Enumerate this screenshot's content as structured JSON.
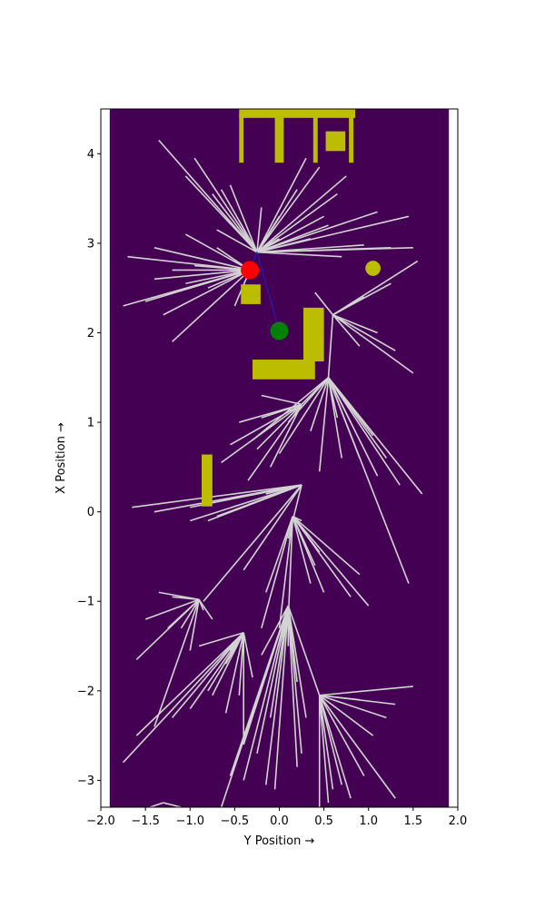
{
  "chart_data": {
    "type": "scatter",
    "title": "",
    "xlabel": "Y Position →",
    "ylabel": "X Position →",
    "xlim": [
      -2.0,
      2.0
    ],
    "ylim": [
      -3.3,
      4.5
    ],
    "x_ticks": [
      -2.0,
      -1.5,
      -1.0,
      -0.5,
      0.0,
      0.5,
      1.0,
      1.5,
      2.0
    ],
    "x_tick_labels": [
      "−2.0",
      "−1.5",
      "−1.0",
      "−0.5",
      "0.0",
      "0.5",
      "1.0",
      "1.5",
      "2.0"
    ],
    "y_ticks": [
      -3,
      -2,
      -1,
      0,
      1,
      2,
      3,
      4
    ],
    "y_tick_labels": [
      "−3",
      "−2",
      "−1",
      "0",
      "1",
      "2",
      "3",
      "4"
    ],
    "grid": false,
    "colors": {
      "background": "#440154",
      "obstacle": "#bdbd00",
      "tree": "#d3d3d3",
      "path": "#1f1fcf",
      "start": "#ff0000",
      "goal": "#008000",
      "outside": "#ffffff"
    },
    "workspace": {
      "x": [
        -1.9,
        1.9
      ],
      "y": [
        -3.3,
        4.5
      ]
    },
    "obstacles": [
      [
        -0.45,
        4.4,
        1.3,
        0.1
      ],
      [
        -0.45,
        3.9,
        0.05,
        0.55
      ],
      [
        -0.05,
        3.9,
        0.1,
        0.55
      ],
      [
        0.38,
        3.9,
        0.05,
        0.55
      ],
      [
        0.78,
        3.9,
        0.05,
        0.55
      ],
      [
        0.52,
        4.03,
        0.22,
        0.22
      ],
      [
        -0.43,
        2.32,
        0.22,
        0.22
      ],
      [
        0.27,
        1.68,
        0.23,
        0.6
      ],
      [
        -0.3,
        1.48,
        0.7,
        0.22
      ],
      [
        -0.87,
        0.06,
        0.12,
        0.58
      ]
    ],
    "circle_obstacles": [
      {
        "cx": 1.05,
        "cy": 2.72,
        "r": 0.085
      }
    ],
    "start": {
      "x": -0.33,
      "y": 2.7
    },
    "goal": {
      "x": 0.0,
      "y": 2.02
    },
    "path": [
      [
        -0.33,
        2.7
      ],
      [
        -0.25,
        2.9
      ],
      [
        -0.15,
        2.55
      ],
      [
        0.0,
        2.02
      ]
    ],
    "tree_hubs": [
      {
        "root": [
          -0.25,
          2.9
        ],
        "branches": [
          [
            -0.7,
            3.15
          ],
          [
            -1.05,
            3.75
          ],
          [
            -1.35,
            4.15
          ],
          [
            -0.95,
            3.95
          ],
          [
            -0.65,
            3.6
          ],
          [
            -0.55,
            3.65
          ],
          [
            -0.75,
            3.55
          ],
          [
            -0.45,
            3.25
          ],
          [
            -0.2,
            3.4
          ],
          [
            0.0,
            3.05
          ],
          [
            0.5,
            3.3
          ],
          [
            0.65,
            3.55
          ],
          [
            0.75,
            3.75
          ],
          [
            1.1,
            3.35
          ],
          [
            1.45,
            3.3
          ],
          [
            1.5,
            2.95
          ],
          [
            1.25,
            2.95
          ],
          [
            0.95,
            2.98
          ],
          [
            0.7,
            2.85
          ],
          [
            0.35,
            3.05
          ],
          [
            0.55,
            3.2
          ],
          [
            0.2,
            3.6
          ],
          [
            0.45,
            3.85
          ],
          [
            0.3,
            3.95
          ],
          [
            0.0,
            3.3
          ]
        ]
      },
      {
        "root": [
          -0.33,
          2.7
        ],
        "branches": [
          [
            -1.7,
            2.85
          ],
          [
            -1.4,
            2.95
          ],
          [
            -1.05,
            3.1
          ],
          [
            -1.2,
            2.7
          ],
          [
            -1.4,
            2.6
          ],
          [
            -1.75,
            2.3
          ],
          [
            -1.5,
            2.35
          ],
          [
            -1.05,
            2.55
          ],
          [
            -1.3,
            2.2
          ],
          [
            -1.2,
            1.9
          ],
          [
            -0.8,
            2.5
          ],
          [
            -0.5,
            2.3
          ],
          [
            -0.7,
            2.95
          ],
          [
            -0.95,
            2.75
          ]
        ]
      },
      {
        "root": [
          0.6,
          2.2
        ],
        "branches": [
          [
            0.4,
            2.45
          ],
          [
            0.95,
            2.4
          ],
          [
            1.25,
            2.55
          ],
          [
            1.55,
            2.8
          ],
          [
            1.1,
            2.0
          ],
          [
            1.3,
            1.8
          ],
          [
            1.5,
            1.55
          ],
          [
            0.9,
            1.85
          ],
          [
            0.55,
            1.5
          ]
        ]
      },
      {
        "root": [
          0.55,
          1.5
        ],
        "branches": [
          [
            0.25,
            1.2
          ],
          [
            0.0,
            0.65
          ],
          [
            -0.3,
            0.8
          ],
          [
            0.1,
            1.0
          ],
          [
            0.35,
            0.9
          ],
          [
            0.45,
            0.45
          ],
          [
            0.7,
            0.6
          ],
          [
            0.65,
            1.05
          ],
          [
            0.8,
            1.0
          ],
          [
            1.05,
            0.85
          ],
          [
            1.1,
            0.4
          ],
          [
            0.9,
            0.6
          ],
          [
            1.2,
            0.6
          ],
          [
            1.35,
            0.3
          ],
          [
            1.6,
            0.2
          ],
          [
            1.45,
            -0.8
          ]
        ]
      },
      {
        "root": [
          0.25,
          1.2
        ],
        "branches": [
          [
            -0.2,
            1.3
          ],
          [
            -0.45,
            1.0
          ],
          [
            -0.65,
            0.55
          ],
          [
            -0.55,
            0.75
          ],
          [
            -0.35,
            0.35
          ],
          [
            -0.1,
            0.5
          ],
          [
            -0.2,
            1.05
          ],
          [
            -0.25,
            0.7
          ]
        ]
      },
      {
        "root": [
          0.25,
          0.3
        ],
        "branches": [
          [
            -0.35,
            0.08
          ],
          [
            -0.8,
            -0.1
          ],
          [
            -1.0,
            -0.1
          ],
          [
            -1.4,
            0.0
          ],
          [
            -1.65,
            0.05
          ],
          [
            -1.0,
            0.05
          ],
          [
            -0.5,
            0.15
          ],
          [
            -0.7,
            -0.05
          ],
          [
            -0.15,
            0.2
          ],
          [
            0.1,
            -0.3
          ],
          [
            -0.4,
            -0.65
          ],
          [
            -0.85,
            -1.0
          ]
        ]
      },
      {
        "root": [
          0.15,
          -0.05
        ],
        "branches": [
          [
            0.35,
            -0.8
          ],
          [
            0.4,
            -0.6
          ],
          [
            0.1,
            -1.2
          ],
          [
            0.0,
            -1.3
          ],
          [
            -0.15,
            -0.9
          ],
          [
            -0.2,
            -1.3
          ],
          [
            0.5,
            -0.9
          ],
          [
            0.8,
            -0.95
          ],
          [
            1.0,
            -1.05
          ],
          [
            0.9,
            -0.7
          ],
          [
            0.45,
            -0.45
          ],
          [
            0.25,
            -0.1
          ]
        ]
      },
      {
        "root": [
          -0.9,
          -0.98
        ],
        "branches": [
          [
            -1.35,
            -0.9
          ],
          [
            -1.5,
            -1.2
          ],
          [
            -1.6,
            -1.65
          ],
          [
            -1.25,
            -1.3
          ],
          [
            -1.4,
            -2.4
          ],
          [
            -1.0,
            -1.55
          ],
          [
            -0.85,
            -1.1
          ],
          [
            -1.1,
            -1.3
          ],
          [
            -1.2,
            -0.95
          ],
          [
            -0.75,
            -1.2
          ]
        ]
      },
      {
        "root": [
          -0.4,
          -1.35
        ],
        "branches": [
          [
            -0.9,
            -1.5
          ],
          [
            -1.6,
            -2.5
          ],
          [
            -1.75,
            -2.8
          ],
          [
            -1.2,
            -2.3
          ],
          [
            -1.0,
            -2.2
          ],
          [
            -0.8,
            -2.0
          ],
          [
            -0.55,
            -1.55
          ],
          [
            -0.75,
            -2.05
          ],
          [
            -0.6,
            -2.25
          ],
          [
            -0.4,
            -2.55
          ],
          [
            -0.45,
            -2.05
          ],
          [
            -0.3,
            -1.85
          ],
          [
            -0.6,
            -1.7
          ]
        ]
      },
      {
        "root": [
          0.1,
          -1.05
        ],
        "branches": [
          [
            -0.2,
            -1.6
          ],
          [
            -0.1,
            -2.3
          ],
          [
            0.1,
            -1.5
          ],
          [
            0.2,
            -1.9
          ],
          [
            0.3,
            -2.3
          ],
          [
            -0.4,
            -2.6
          ],
          [
            -0.55,
            -2.95
          ],
          [
            -0.65,
            -3.3
          ],
          [
            -0.4,
            -3.0
          ],
          [
            -0.25,
            -2.7
          ],
          [
            -0.15,
            -3.05
          ],
          [
            -0.05,
            -3.1
          ],
          [
            0.2,
            -2.85
          ],
          [
            0.25,
            -2.7
          ],
          [
            0.45,
            -2.05
          ]
        ]
      },
      {
        "root": [
          0.45,
          -2.05
        ],
        "branches": [
          [
            0.9,
            -2.1
          ],
          [
            1.3,
            -2.15
          ],
          [
            1.5,
            -1.95
          ],
          [
            1.2,
            -2.3
          ],
          [
            1.05,
            -2.5
          ],
          [
            1.3,
            -3.2
          ],
          [
            0.95,
            -2.95
          ],
          [
            0.8,
            -3.2
          ],
          [
            0.7,
            -3.05
          ],
          [
            0.6,
            -3.1
          ],
          [
            0.55,
            -3.25
          ],
          [
            0.45,
            -3.3
          ]
        ]
      },
      {
        "root": [
          -1.3,
          -3.25
        ],
        "branches": [
          [
            -1.45,
            -3.3
          ],
          [
            -1.1,
            -3.3
          ]
        ]
      }
    ]
  }
}
